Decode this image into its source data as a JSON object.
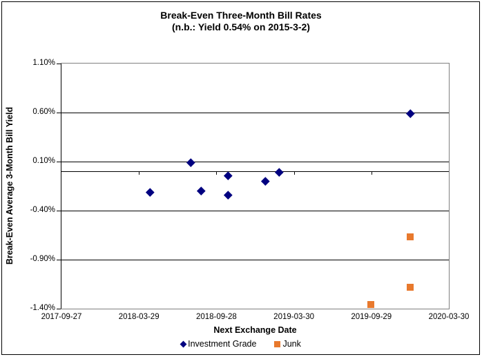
{
  "accent_colors": {
    "investment_grade": "#000080",
    "junk": "#E8792D",
    "axis": "#000000",
    "plot_border": "#7F7F7F",
    "background": "#FFFFFF"
  },
  "chart_data": {
    "type": "scatter",
    "title": "Break-Even Three-Month Bill Rates",
    "subtitle": "(n.b.: Yield  0.54% on 2015-3-2)",
    "xlabel": "Next Exchange Date",
    "ylabel": "Break-Even Average 3-Month Bill Yield",
    "xlim": [
      "2017-09-27",
      "2020-03-30"
    ],
    "ylim": [
      -1.4,
      1.1
    ],
    "x_ticks": [
      "2017-09-27",
      "2018-03-29",
      "2018-09-28",
      "2019-03-30",
      "2019-09-29",
      "2020-03-30"
    ],
    "y_ticks": [
      {
        "value": 1.1,
        "label": "1.10%"
      },
      {
        "value": 0.6,
        "label": "0.60%"
      },
      {
        "value": 0.1,
        "label": "0.10%"
      },
      {
        "value": -0.4,
        "label": "-0.40%"
      },
      {
        "value": -0.9,
        "label": "-0.90%"
      },
      {
        "value": -1.4,
        "label": "-1.40%"
      }
    ],
    "grid": "horizontal major gridlines; category axis line drawn at y=0 with ticks",
    "legend_position": "bottom",
    "series": [
      {
        "name": "Investment Grade",
        "marker": "diamond",
        "color": "#000080",
        "points": [
          {
            "x": "2018-04-25",
            "y": -0.21
          },
          {
            "x": "2018-07-29",
            "y": 0.09
          },
          {
            "x": "2018-08-23",
            "y": -0.2
          },
          {
            "x": "2018-10-25",
            "y": -0.04
          },
          {
            "x": "2018-10-25",
            "y": -0.24
          },
          {
            "x": "2019-01-22",
            "y": -0.1
          },
          {
            "x": "2019-02-23",
            "y": -0.01
          },
          {
            "x": "2019-12-30",
            "y": 0.59
          }
        ]
      },
      {
        "name": "Junk",
        "marker": "square",
        "color": "#E8792D",
        "points": [
          {
            "x": "2019-09-28",
            "y": -1.36
          },
          {
            "x": "2019-12-30",
            "y": -0.67
          },
          {
            "x": "2019-12-30",
            "y": -1.18
          }
        ]
      }
    ]
  }
}
